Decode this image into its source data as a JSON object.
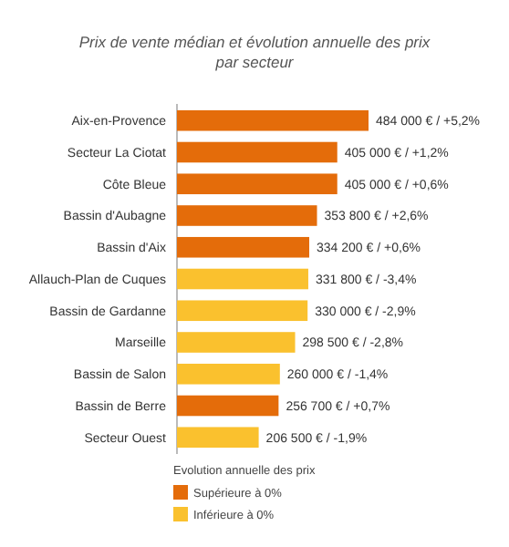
{
  "chart_data": {
    "type": "bar",
    "orientation": "horizontal",
    "title": "Prix de vente médian et évolution annuelle des prix par secteur",
    "categories": [
      "Aix-en-Provence",
      "Secteur La Ciotat",
      "Côte Bleue",
      "Bassin d'Aubagne",
      "Bassin d'Aix",
      "Allauch-Plan de Cuques",
      "Bassin de Gardanne",
      "Marseille",
      "Bassin de Salon",
      "Bassin de Berre",
      "Secteur Ouest"
    ],
    "series": [
      {
        "name": "Supérieure à 0%",
        "color": "#e46c0a",
        "values": [
          484000,
          405000,
          405000,
          353800,
          334200,
          null,
          null,
          null,
          null,
          256700,
          null
        ],
        "value_labels": [
          "484 000 € / +5,2%",
          "405 000 € / +1,2%",
          "405 000 € / +0,6%",
          "353 800  € / +2,6%",
          "334 200 € / +0,6%",
          null,
          null,
          null,
          null,
          "256 700 € / +0,7%",
          null
        ]
      },
      {
        "name": "Inférieure à 0%",
        "color": "#fac12e",
        "values": [
          null,
          null,
          null,
          null,
          null,
          331800,
          330000,
          298500,
          260000,
          null,
          206500
        ],
        "value_labels": [
          null,
          null,
          null,
          null,
          null,
          "331 800 € / -3,4%",
          "330 000 € / -2,9%",
          "298 500 € / -2,8%",
          "260 000 € / -1,4%",
          null,
          "206 500 € / -1,9%"
        ]
      }
    ],
    "legend_title": "Evolution annuelle des prix",
    "legend": "bottom"
  }
}
